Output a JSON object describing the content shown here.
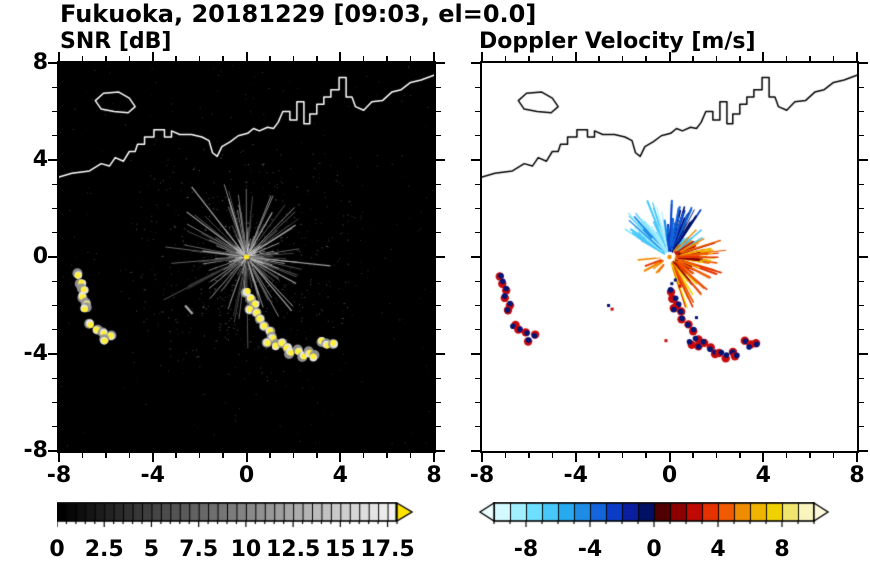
{
  "title": "Fukuoka, 20181229 [09:03, el=0.0]",
  "panels": {
    "snr": {
      "title": "SNR [dB]"
    },
    "doppler": {
      "title": "Doppler Velocity [m/s]"
    }
  },
  "axes": {
    "xlim": [
      -8,
      8
    ],
    "ylim": [
      -8,
      8
    ],
    "xtick_values": [
      -8,
      -4,
      0,
      4,
      8
    ],
    "xtick_labels": [
      "-8",
      "-4",
      "0",
      "4",
      "8"
    ],
    "ytick_values": [
      8,
      4,
      0,
      -4,
      -8
    ],
    "ytick_labels": [
      "8",
      "4",
      "0",
      "-4",
      "-8"
    ],
    "minor_tick_step": 1
  },
  "colorbars": {
    "snr": {
      "range": [
        0,
        18
      ],
      "segments": 36,
      "minor_step": 0.5,
      "tick_values": [
        0,
        2.5,
        5,
        7.5,
        10,
        12.5,
        15,
        17.5
      ],
      "tick_labels": [
        "0",
        "2.5",
        "5",
        "7.5",
        "10",
        "12.5",
        "15",
        "17.5"
      ],
      "start_color": "#000000",
      "end_color": "#F2F2F2",
      "over_arrow_color": "#FFE400"
    },
    "doppler": {
      "range": [
        -10,
        10
      ],
      "minor_step": 1,
      "tick_values": [
        -8,
        -4,
        0,
        4,
        8
      ],
      "tick_labels": [
        "-8",
        "-4",
        "0",
        "4",
        "8"
      ],
      "segment_colors": [
        "#D2FAFF",
        "#A0F0FF",
        "#6EE0FF",
        "#46C8FA",
        "#28AAF0",
        "#1E8CE6",
        "#1464DC",
        "#0A3CC8",
        "#0A1EA0",
        "#001064",
        "#500000",
        "#8C0000",
        "#BE0A00",
        "#E63200",
        "#F05A00",
        "#F08C00",
        "#F0B400",
        "#F0D200",
        "#F0E66E",
        "#FAF5BE"
      ],
      "under_arrow_color": "#EBFFFF",
      "over_arrow_color": "#FFFBDC"
    }
  },
  "chart_data": {
    "type": "heatmap",
    "description": "Dual-panel PPI weather-radar scan at Fukuoka, 2018-12-29 09:03, elevation 0.0 deg. Left panel: SNR [dB] on black background with a gray ground-clutter ray fan centered on the radar origin (0,0) and saturated yellow echo clusters southwest and south-southeast of the radar. Right panel: Doppler velocity [m/s] on white background; negative (blue/cyan) velocities above-left of the origin, positive (orange/red/yellow) to the right and lower-right, with dark-blue cores and red fringes on the strong echo clusters. A coastline with harbor structures and one island crosses the upper part of both panels.",
    "x_range": [
      -8,
      8
    ],
    "y_range": [
      -8,
      8
    ],
    "radar_center": [
      0,
      0
    ],
    "coastline": [
      [
        -8.0,
        3.3
      ],
      [
        -7.45,
        3.45
      ],
      [
        -6.7,
        3.55
      ],
      [
        -6.2,
        3.85
      ],
      [
        -5.85,
        3.75
      ],
      [
        -5.6,
        4.1
      ],
      [
        -5.25,
        3.95
      ],
      [
        -5.0,
        4.35
      ],
      [
        -4.75,
        4.35
      ],
      [
        -4.65,
        4.65
      ],
      [
        -4.35,
        4.65
      ],
      [
        -4.35,
        4.95
      ],
      [
        -3.95,
        4.95
      ],
      [
        -3.95,
        5.25
      ],
      [
        -3.5,
        5.25
      ],
      [
        -3.5,
        4.95
      ],
      [
        -3.2,
        4.95
      ],
      [
        -3.2,
        5.2
      ],
      [
        -2.85,
        5.05
      ],
      [
        -2.35,
        5.05
      ],
      [
        -1.9,
        4.95
      ],
      [
        -1.6,
        4.8
      ],
      [
        -1.45,
        4.3
      ],
      [
        -1.25,
        4.15
      ],
      [
        -1.05,
        4.55
      ],
      [
        -0.7,
        4.75
      ],
      [
        -0.35,
        5.0
      ],
      [
        0.05,
        5.1
      ],
      [
        0.3,
        5.3
      ],
      [
        0.55,
        5.2
      ],
      [
        0.9,
        5.35
      ],
      [
        1.15,
        5.3
      ],
      [
        1.35,
        5.55
      ],
      [
        1.55,
        6.0
      ],
      [
        1.85,
        6.0
      ],
      [
        1.85,
        5.65
      ],
      [
        2.15,
        5.65
      ],
      [
        2.15,
        6.4
      ],
      [
        2.45,
        6.4
      ],
      [
        2.45,
        5.5
      ],
      [
        2.7,
        5.5
      ],
      [
        2.7,
        5.9
      ],
      [
        3.0,
        5.9
      ],
      [
        3.0,
        6.3
      ],
      [
        3.3,
        6.3
      ],
      [
        3.3,
        6.6
      ],
      [
        3.6,
        6.6
      ],
      [
        3.6,
        6.9
      ],
      [
        3.95,
        6.9
      ],
      [
        3.95,
        7.4
      ],
      [
        4.25,
        7.4
      ],
      [
        4.25,
        6.6
      ],
      [
        4.5,
        6.6
      ],
      [
        4.65,
        6.2
      ],
      [
        5.0,
        6.05
      ],
      [
        5.35,
        6.4
      ],
      [
        5.8,
        6.45
      ],
      [
        6.2,
        6.8
      ],
      [
        6.6,
        6.9
      ],
      [
        7.0,
        7.2
      ],
      [
        7.45,
        7.3
      ],
      [
        8.0,
        7.5
      ]
    ],
    "island": [
      [
        -6.45,
        6.45
      ],
      [
        -6.1,
        6.75
      ],
      [
        -5.45,
        6.8
      ],
      [
        -5.0,
        6.55
      ],
      [
        -4.75,
        6.2
      ],
      [
        -5.05,
        5.95
      ],
      [
        -5.65,
        6.0
      ],
      [
        -6.2,
        6.1
      ]
    ],
    "echo_clusters": [
      {
        "name": "west-arc",
        "points": [
          [
            -7.2,
            -0.75
          ],
          [
            -7.05,
            -1.05
          ],
          [
            -6.95,
            -1.35
          ],
          [
            -7.0,
            -1.65
          ],
          [
            -6.8,
            -1.95
          ],
          [
            -6.9,
            -2.15
          ]
        ]
      },
      {
        "name": "west-lower",
        "points": [
          [
            -6.65,
            -2.8
          ],
          [
            -6.4,
            -3.0
          ],
          [
            -6.1,
            -3.15
          ],
          [
            -5.8,
            -3.25
          ],
          [
            -6.05,
            -3.45
          ]
        ]
      },
      {
        "name": "central-chain",
        "points": [
          [
            0.05,
            -1.4
          ],
          [
            0.2,
            -1.7
          ],
          [
            0.35,
            -1.95
          ],
          [
            0.15,
            -2.15
          ],
          [
            0.45,
            -2.3
          ],
          [
            0.55,
            -2.55
          ],
          [
            0.75,
            -2.85
          ],
          [
            1.0,
            -3.05
          ],
          [
            1.15,
            -3.35
          ],
          [
            0.9,
            -3.55
          ],
          [
            1.25,
            -3.65
          ],
          [
            1.5,
            -3.55
          ],
          [
            1.7,
            -3.75
          ],
          [
            1.9,
            -3.95
          ],
          [
            2.2,
            -3.9
          ],
          [
            2.45,
            -4.1
          ],
          [
            2.7,
            -3.95
          ],
          [
            2.85,
            -4.1
          ]
        ]
      },
      {
        "name": "southeast-pair",
        "points": [
          [
            3.2,
            -3.45
          ],
          [
            3.45,
            -3.65
          ],
          [
            3.7,
            -3.55
          ]
        ]
      }
    ],
    "snr": {
      "background_db": 0,
      "strong_echo_db": 18,
      "clutter_fan": {
        "center": [
          0,
          0
        ],
        "max_radius": 3.5,
        "ray_count": 170
      },
      "bright_rays": [
        {
          "angle_deg": 128,
          "length": 3.6
        },
        {
          "angle_deg": 143,
          "length": 3.0
        },
        {
          "angle_deg": 107,
          "length": 2.4
        },
        {
          "angle_deg": 60,
          "length": 2.0
        },
        {
          "angle_deg": 33,
          "length": 2.3
        },
        {
          "angle_deg": -6,
          "length": 3.4
        },
        {
          "angle_deg": -28,
          "length": 2.2
        },
        {
          "angle_deg": -50,
          "length": 2.8
        },
        {
          "angle_deg": 172,
          "length": 1.7
        },
        {
          "angle_deg": -72,
          "length": 1.5
        }
      ],
      "gray_dash": [
        [
          -2.62,
          -2.0
        ],
        [
          -2.3,
          -2.35
        ]
      ]
    },
    "doppler": {
      "fan_wedges": [
        {
          "angles_deg": [
            95,
            150
          ],
          "radius": [
            0.25,
            2.3
          ],
          "velocity_sign": "negative",
          "colors": [
            "#8CE6FF",
            "#46C8FA",
            "#B4F0FF",
            "#1E8CE6"
          ],
          "rays": 60
        },
        {
          "angles_deg": [
            55,
            95
          ],
          "radius": [
            0.25,
            2.2
          ],
          "velocity_sign": "strong-negative",
          "colors": [
            "#0A3CC8",
            "#001064",
            "#1464DC"
          ],
          "rays": 45
        },
        {
          "angles_deg": [
            20,
            55
          ],
          "radius": [
            0.25,
            1.6
          ],
          "velocity_sign": "mixed",
          "colors": [
            "#46C8FA",
            "#BE0A00",
            "#F08C00"
          ],
          "rays": 22
        },
        {
          "angles_deg": [
            -75,
            20
          ],
          "radius": [
            0.25,
            2.2
          ],
          "velocity_sign": "positive",
          "colors": [
            "#F05A00",
            "#E63200",
            "#F0B400",
            "#8C0000",
            "#F0D200"
          ],
          "rays": 75
        },
        {
          "angles_deg": [
            185,
            235
          ],
          "radius": [
            0.3,
            1.1
          ],
          "velocity_sign": "positive",
          "colors": [
            "#F08C00",
            "#E63200"
          ],
          "rays": 12
        }
      ],
      "specks": [
        [
          0.25,
          -0.95,
          "#001478"
        ],
        [
          0.45,
          -1.2,
          "#C80A0A"
        ],
        [
          0.1,
          -1.1,
          "#001478"
        ],
        [
          -2.45,
          -2.15,
          "#C80A0A"
        ],
        [
          -2.6,
          -2.0,
          "#001478"
        ],
        [
          0.6,
          -2.3,
          "#001478"
        ],
        [
          -0.15,
          -3.45,
          "#C80A0A"
        ],
        [
          1.15,
          -2.5,
          "#001478"
        ]
      ],
      "cluster_core_color": "#001478",
      "cluster_edge_color": "#C80A0A"
    }
  }
}
